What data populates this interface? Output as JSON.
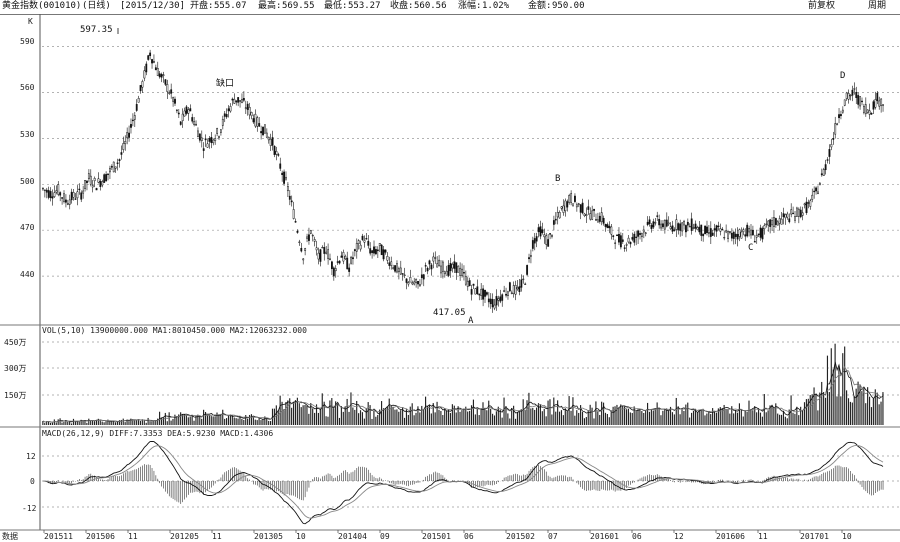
{
  "header": {
    "index_name": "黄金指数",
    "index_code": "(001010)",
    "period_tag": "(日线)",
    "date": "[2015/12/30]",
    "open_label": "开盘:",
    "open": "555.07",
    "high_label": "最高:",
    "high": "569.55",
    "low_label": "最低:",
    "low": "553.27",
    "close_label": "收盘:",
    "close": "560.56",
    "change_label": "涨幅:",
    "change": "1.02%",
    "amount_label": "金额:",
    "amount": "950.00",
    "right_tab_1": "前复权",
    "right_tab_2": "周期"
  },
  "main_panel": {
    "ylabels": [
      "590",
      "560",
      "530",
      "500",
      "470",
      "440"
    ],
    "annotations": {
      "high_value": "597.35",
      "low_value": "417.05",
      "gap_label": "缺口",
      "point_A": "A",
      "point_B": "B",
      "point_C": "C",
      "point_D": "D",
      "top_corner": "K"
    }
  },
  "volume_panel": {
    "legend": "VOL(5,10) 13900000.000 MA1:8010450.000 MA2:12063232.000",
    "ylabels": [
      "450万",
      "300万",
      "150万"
    ]
  },
  "macd_panel": {
    "legend": "MACD(26,12,9) DIFF:7.3353 DEA:5.9230 MACD:1.4306",
    "ylabels": [
      "12",
      "0",
      "-12"
    ]
  },
  "x_axis": {
    "unit_label": "数据",
    "labels": [
      "201511",
      "201506",
      "11",
      "201205",
      "11",
      "201305",
      "10",
      "201404",
      "09",
      "201501",
      "06",
      "201502",
      "07",
      "201601",
      "06",
      "12",
      "201606",
      "11",
      "201701",
      "10"
    ]
  },
  "colors": {
    "background": "#ffffff",
    "candle": "#111111",
    "grid": "#9a9a9a",
    "ma1": "#111111",
    "ma2": "#666666",
    "diff_line": "#111111",
    "dea_line": "#777777"
  },
  "chart_data": {
    "type": "candlestick",
    "y_range": [
      410,
      610
    ],
    "gridlines": [
      590,
      560,
      530,
      500,
      470,
      440
    ],
    "price_path": [
      [
        0,
        497
      ],
      [
        4,
        494
      ],
      [
        8,
        496
      ],
      [
        12,
        489
      ],
      [
        16,
        492
      ],
      [
        20,
        494
      ],
      [
        24,
        504
      ],
      [
        28,
        500
      ],
      [
        32,
        504
      ],
      [
        36,
        510
      ],
      [
        40,
        516
      ],
      [
        44,
        530
      ],
      [
        48,
        546
      ],
      [
        52,
        566
      ],
      [
        56,
        586
      ],
      [
        60,
        574
      ],
      [
        64,
        566
      ],
      [
        68,
        556
      ],
      [
        72,
        540
      ],
      [
        76,
        550
      ],
      [
        80,
        538
      ],
      [
        84,
        526
      ],
      [
        88,
        530
      ],
      [
        92,
        534
      ],
      [
        96,
        546
      ],
      [
        100,
        556
      ],
      [
        104,
        554
      ],
      [
        108,
        548
      ],
      [
        112,
        540
      ],
      [
        116,
        535
      ],
      [
        120,
        527
      ],
      [
        124,
        512
      ],
      [
        128,
        497
      ],
      [
        132,
        476
      ],
      [
        136,
        454
      ],
      [
        140,
        470
      ],
      [
        144,
        452
      ],
      [
        148,
        458
      ],
      [
        152,
        444
      ],
      [
        156,
        454
      ],
      [
        160,
        446
      ],
      [
        164,
        458
      ],
      [
        168,
        465
      ],
      [
        172,
        455
      ],
      [
        176,
        458
      ],
      [
        180,
        452
      ],
      [
        184,
        446
      ],
      [
        188,
        440
      ],
      [
        192,
        436
      ],
      [
        196,
        434
      ],
      [
        200,
        444
      ],
      [
        204,
        450
      ],
      [
        208,
        446
      ],
      [
        212,
        444
      ],
      [
        216,
        446
      ],
      [
        220,
        440
      ],
      [
        224,
        432
      ],
      [
        228,
        430
      ],
      [
        232,
        426
      ],
      [
        236,
        422
      ],
      [
        240,
        428
      ],
      [
        244,
        432
      ],
      [
        248,
        430
      ],
      [
        252,
        438
      ],
      [
        256,
        462
      ],
      [
        260,
        470
      ],
      [
        264,
        462
      ],
      [
        268,
        476
      ],
      [
        272,
        485
      ],
      [
        276,
        491
      ],
      [
        280,
        486
      ],
      [
        284,
        482
      ],
      [
        288,
        480
      ],
      [
        292,
        478
      ],
      [
        296,
        470
      ],
      [
        300,
        464
      ],
      [
        304,
        462
      ],
      [
        308,
        464
      ],
      [
        312,
        468
      ],
      [
        316,
        472
      ],
      [
        320,
        476
      ],
      [
        324,
        474
      ],
      [
        328,
        472
      ],
      [
        332,
        474
      ],
      [
        336,
        472
      ],
      [
        340,
        474
      ],
      [
        344,
        470
      ],
      [
        348,
        468
      ],
      [
        352,
        470
      ],
      [
        356,
        468
      ],
      [
        360,
        466
      ],
      [
        364,
        468
      ],
      [
        368,
        470
      ],
      [
        372,
        466
      ],
      [
        376,
        468
      ],
      [
        380,
        474
      ],
      [
        384,
        476
      ],
      [
        388,
        478
      ],
      [
        392,
        480
      ],
      [
        396,
        482
      ],
      [
        400,
        486
      ],
      [
        404,
        494
      ],
      [
        408,
        508
      ],
      [
        412,
        526
      ],
      [
        416,
        546
      ],
      [
        420,
        556
      ],
      [
        424,
        560
      ],
      [
        428,
        552
      ],
      [
        432,
        548
      ],
      [
        436,
        556
      ],
      [
        440,
        552
      ]
    ],
    "markers": {
      "high": {
        "x": 56,
        "value": 597.35
      },
      "low": {
        "x": 232,
        "value": 417.05
      }
    },
    "volume_unit": "万",
    "volume_range": [
      0,
      500
    ],
    "macd_range": [
      -20,
      20
    ]
  }
}
